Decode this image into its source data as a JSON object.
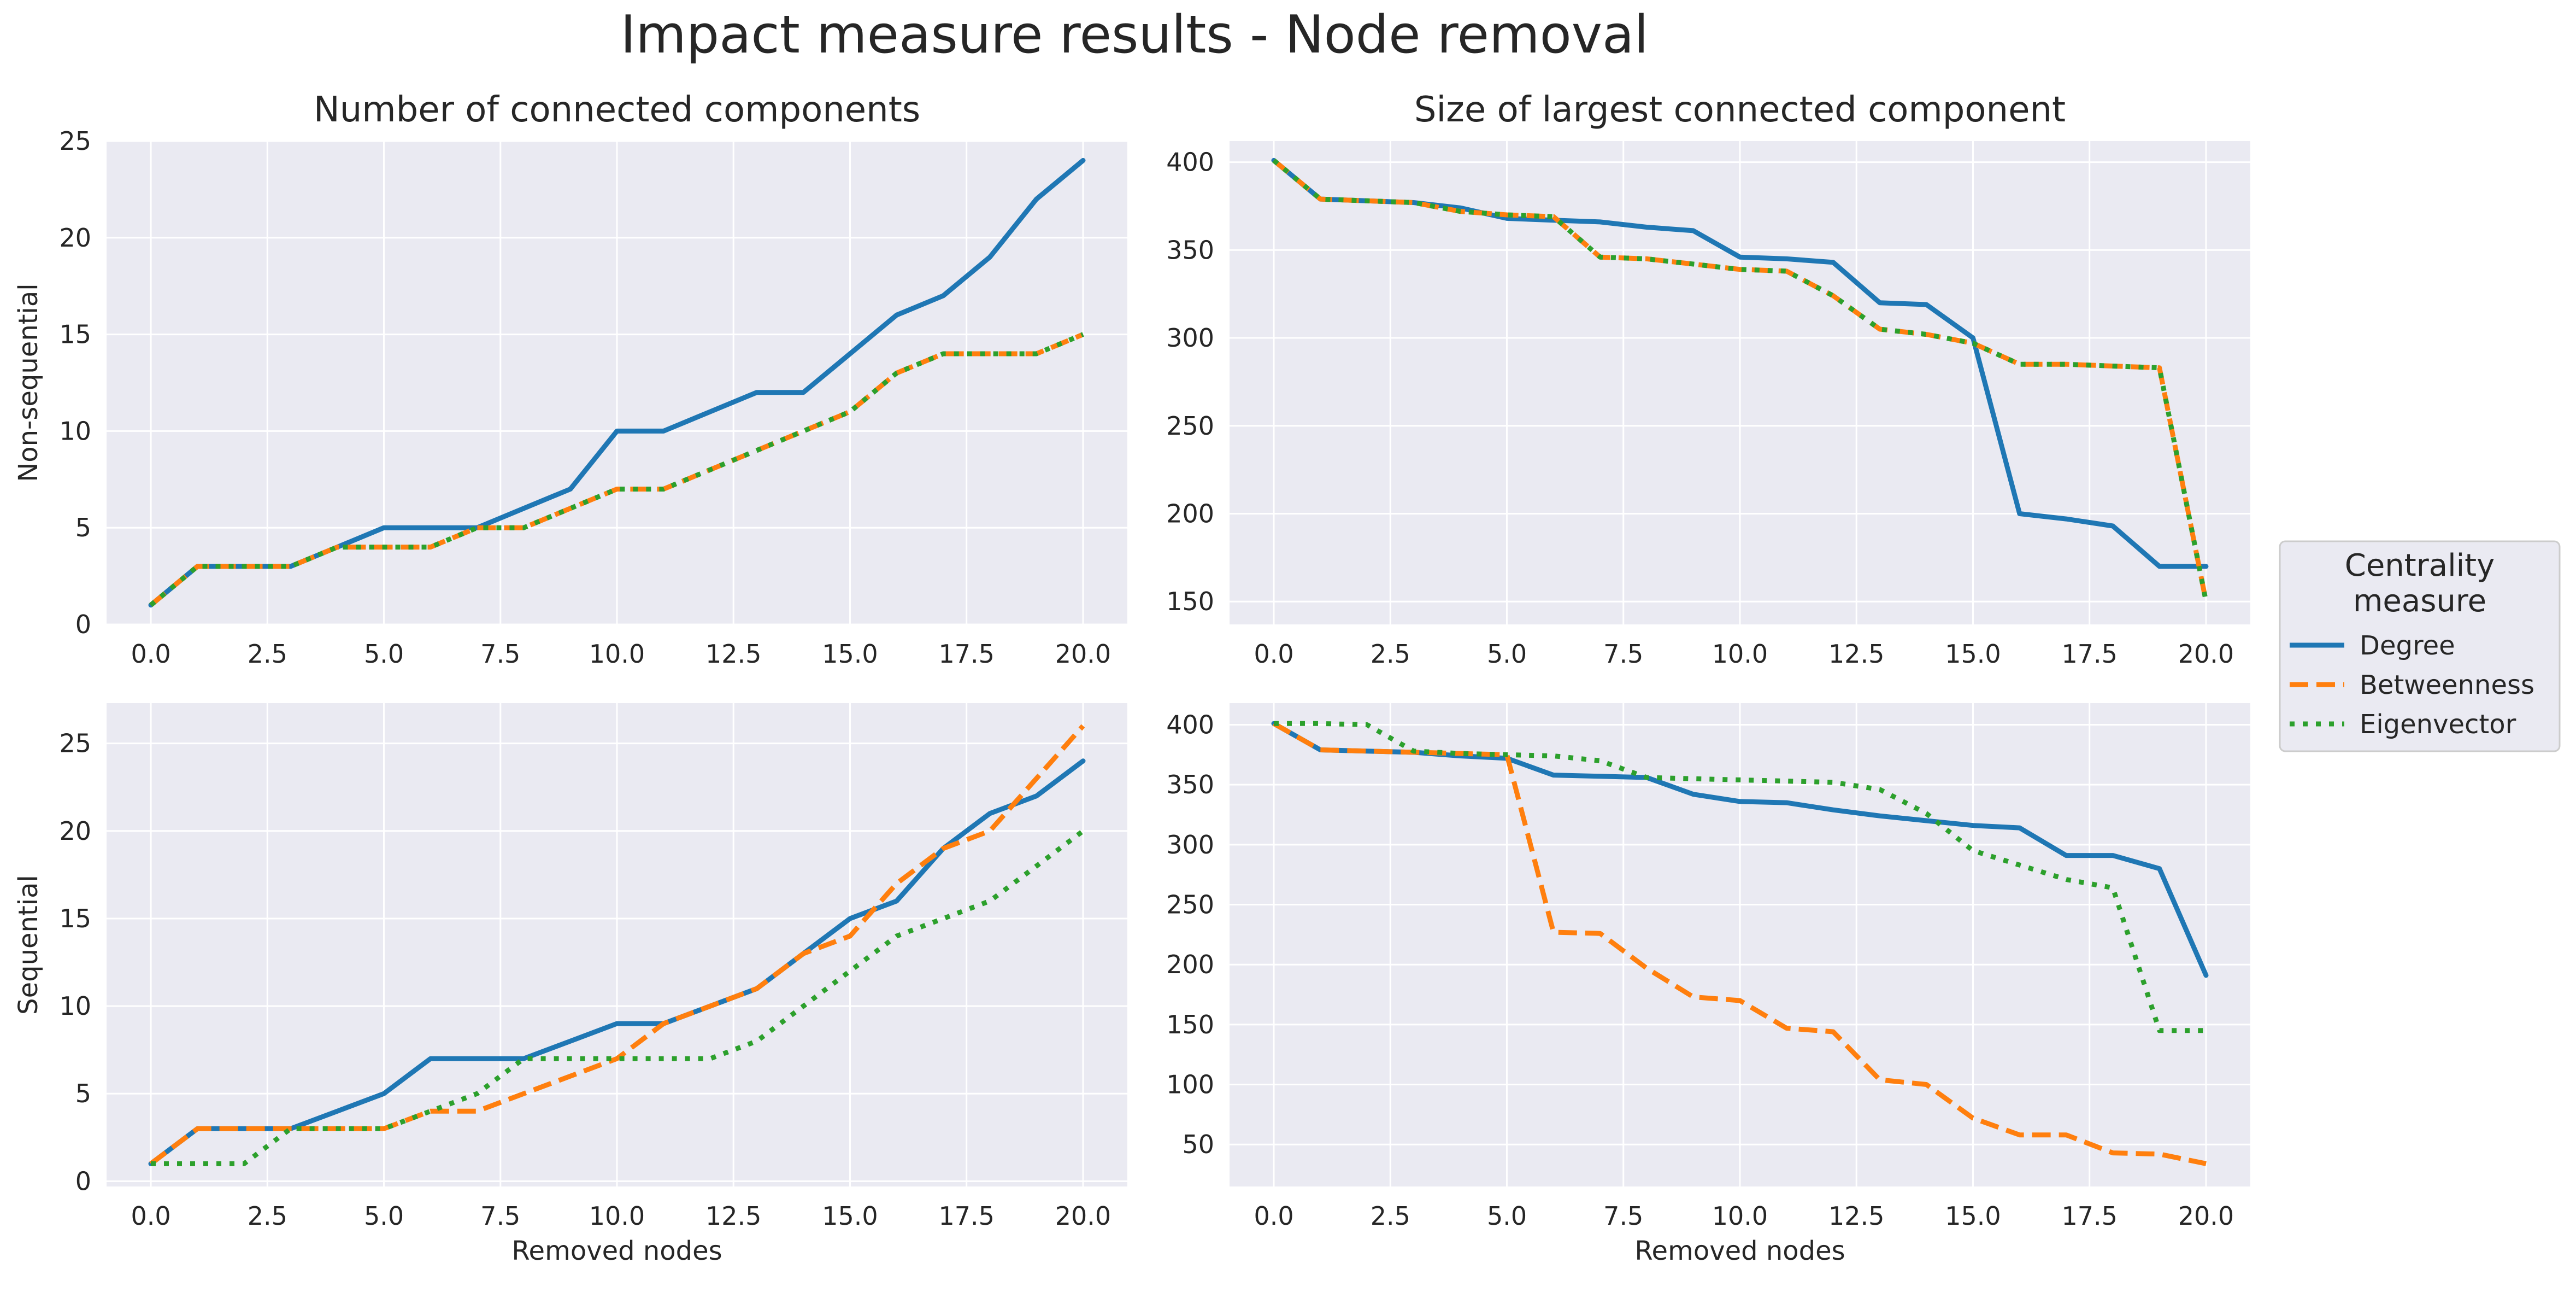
{
  "figure": {
    "title": "Impact measure results - Node removal"
  },
  "chart_data": [
    {
      "type": "line",
      "title": "Number of connected components",
      "xlabel": "",
      "ylabel": "Non-sequential",
      "xlim": [
        -0.95,
        20.95
      ],
      "ylim": [
        0,
        25
      ],
      "xticks": [
        "0.0",
        "2.5",
        "5.0",
        "7.5",
        "10.0",
        "12.5",
        "15.0",
        "17.5",
        "20.0"
      ],
      "yticks": [
        "0",
        "5",
        "10",
        "15",
        "20",
        "25"
      ],
      "x": [
        0,
        1,
        2,
        3,
        4,
        5,
        6,
        7,
        8,
        9,
        10,
        11,
        12,
        13,
        14,
        15,
        16,
        17,
        18,
        19,
        20
      ],
      "series": [
        {
          "name": "Degree",
          "values": [
            1,
            3,
            3,
            3,
            4,
            5,
            5,
            5,
            6,
            7,
            10,
            10,
            11,
            12,
            12,
            14,
            16,
            17,
            19,
            22,
            24
          ]
        },
        {
          "name": "Betweenness",
          "values": [
            1,
            3,
            3,
            3,
            4,
            4,
            4,
            5,
            5,
            6,
            7,
            7,
            8,
            9,
            10,
            11,
            13,
            14,
            14,
            14,
            15
          ]
        },
        {
          "name": "Eigenvector",
          "values": [
            1,
            3,
            3,
            3,
            4,
            4,
            4,
            5,
            5,
            6,
            7,
            7,
            8,
            9,
            10,
            11,
            13,
            14,
            14,
            14,
            15
          ]
        }
      ]
    },
    {
      "type": "line",
      "title": "Size of largest connected component",
      "xlabel": "",
      "ylabel": "",
      "xlim": [
        -0.95,
        20.95
      ],
      "ylim": [
        137,
        412
      ],
      "xticks": [
        "0.0",
        "2.5",
        "5.0",
        "7.5",
        "10.0",
        "12.5",
        "15.0",
        "17.5",
        "20.0"
      ],
      "yticks": [
        "150",
        "200",
        "250",
        "300",
        "350",
        "400"
      ],
      "x": [
        0,
        1,
        2,
        3,
        4,
        5,
        6,
        7,
        8,
        9,
        10,
        11,
        12,
        13,
        14,
        15,
        16,
        17,
        18,
        19,
        20
      ],
      "series": [
        {
          "name": "Degree",
          "values": [
            401,
            379,
            378,
            377,
            374,
            368,
            367,
            366,
            363,
            361,
            346,
            345,
            343,
            320,
            319,
            300,
            200,
            197,
            193,
            170,
            170
          ]
        },
        {
          "name": "Betweenness",
          "values": [
            401,
            379,
            378,
            377,
            372,
            370,
            369,
            346,
            345,
            342,
            339,
            338,
            324,
            305,
            302,
            297,
            285,
            285,
            284,
            283,
            150
          ]
        },
        {
          "name": "Eigenvector",
          "values": [
            401,
            379,
            378,
            377,
            372,
            370,
            369,
            346,
            345,
            342,
            339,
            338,
            324,
            305,
            302,
            297,
            285,
            285,
            284,
            283,
            150
          ]
        }
      ]
    },
    {
      "type": "line",
      "title": "",
      "xlabel": "Removed nodes",
      "ylabel": "Sequential",
      "xlim": [
        -0.95,
        20.95
      ],
      "ylim": [
        -0.3,
        27.3
      ],
      "xticks": [
        "0.0",
        "2.5",
        "5.0",
        "7.5",
        "10.0",
        "12.5",
        "15.0",
        "17.5",
        "20.0"
      ],
      "yticks": [
        "0",
        "5",
        "10",
        "15",
        "20",
        "25"
      ],
      "x": [
        0,
        1,
        2,
        3,
        4,
        5,
        6,
        7,
        8,
        9,
        10,
        11,
        12,
        13,
        14,
        15,
        16,
        17,
        18,
        19,
        20
      ],
      "series": [
        {
          "name": "Degree",
          "values": [
            1,
            3,
            3,
            3,
            4,
            5,
            7,
            7,
            7,
            8,
            9,
            9,
            10,
            11,
            13,
            15,
            16,
            19,
            21,
            22,
            24
          ]
        },
        {
          "name": "Betweenness",
          "values": [
            1,
            3,
            3,
            3,
            3,
            3,
            4,
            4,
            5,
            6,
            7,
            9,
            10,
            11,
            13,
            14,
            17,
            19,
            20,
            23,
            26
          ]
        },
        {
          "name": "Eigenvector",
          "values": [
            1,
            1,
            1,
            3,
            3,
            3,
            4,
            5,
            7,
            7,
            7,
            7,
            7,
            8,
            10,
            12,
            14,
            15,
            16,
            18,
            20
          ]
        }
      ]
    },
    {
      "type": "line",
      "title": "",
      "xlabel": "Removed nodes",
      "ylabel": "",
      "xlim": [
        -0.95,
        20.95
      ],
      "ylim": [
        15,
        418
      ],
      "xticks": [
        "0.0",
        "2.5",
        "5.0",
        "7.5",
        "10.0",
        "12.5",
        "15.0",
        "17.5",
        "20.0"
      ],
      "yticks": [
        "50",
        "100",
        "150",
        "200",
        "250",
        "300",
        "350",
        "400"
      ],
      "x": [
        0,
        1,
        2,
        3,
        4,
        5,
        6,
        7,
        8,
        9,
        10,
        11,
        12,
        13,
        14,
        15,
        16,
        17,
        18,
        19,
        20
      ],
      "series": [
        {
          "name": "Degree",
          "values": [
            401,
            379,
            378,
            377,
            374,
            372,
            358,
            357,
            356,
            342,
            336,
            335,
            329,
            324,
            320,
            316,
            314,
            291,
            291,
            280,
            191
          ]
        },
        {
          "name": "Betweenness",
          "values": [
            401,
            379,
            378,
            377,
            376,
            375,
            227,
            226,
            197,
            173,
            170,
            147,
            144,
            104,
            100,
            72,
            58,
            58,
            43,
            42,
            34
          ]
        },
        {
          "name": "Eigenvector",
          "values": [
            401,
            401,
            400,
            378,
            376,
            375,
            374,
            370,
            356,
            355,
            354,
            353,
            352,
            346,
            326,
            295,
            283,
            271,
            264,
            145,
            145
          ]
        }
      ]
    }
  ],
  "legend": {
    "title_line1": "Centrality",
    "title_line2": "measure",
    "placement": "right",
    "items": [
      {
        "label": "Degree",
        "color": "#1f77b4",
        "style": "solid"
      },
      {
        "label": "Betweenness",
        "color": "#ff7f0e",
        "style": "dashed"
      },
      {
        "label": "Eigenvector",
        "color": "#2ca02c",
        "style": "dotted"
      }
    ]
  },
  "colors": {
    "panel_bg": "#eaeaf2",
    "grid": "#ffffff",
    "Degree": "#1f77b4",
    "Betweenness": "#ff7f0e",
    "Eigenvector": "#2ca02c"
  }
}
